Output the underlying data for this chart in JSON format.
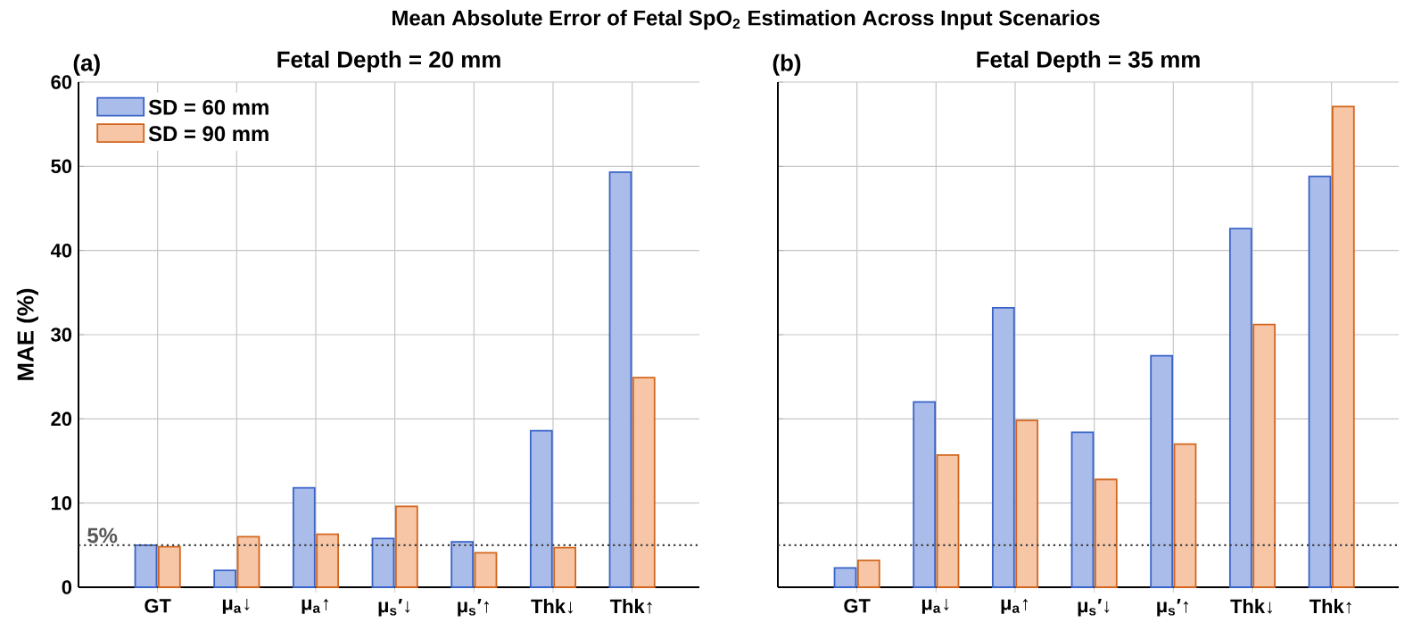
{
  "chart_data": [
    {
      "type": "bar",
      "title": "Mean Absolute Error of Fetal SpO$_{2}$ Estimation Across Input Scenarios",
      "subtitle": "Fetal Depth = 20 mm",
      "ylabel": "MAE (%)",
      "annotations": [
        "(a)"
      ],
      "categories": [
        "GT",
        "μ$_{a}$↓",
        "μ$_{a}$↑",
        "μ$_{s}$′↓",
        "μ$_{s}$′↑",
        "Thk↓",
        "Thk↑"
      ],
      "series": [
        {
          "name": "SD = 60 mm",
          "color": "#aabdea",
          "values": [
            5.0,
            2.0,
            11.8,
            5.8,
            5.4,
            18.6,
            49.3
          ]
        },
        {
          "name": "SD = 90 mm",
          "color": "#f7c6a6",
          "values": [
            4.8,
            6.0,
            6.3,
            9.6,
            4.1,
            4.7,
            24.9
          ]
        }
      ],
      "ylim": [
        0,
        60
      ],
      "yticks": [
        0,
        10,
        20,
        30,
        40,
        50,
        60
      ],
      "grid": true,
      "legend": "top left",
      "ref_lines": [
        {
          "axis": "y",
          "value": 5,
          "label": "5%",
          "line_style": "dotted"
        }
      ]
    },
    {
      "type": "bar",
      "subtitle": "Fetal Depth = 35 mm",
      "annotations": [
        "(b)"
      ],
      "categories": [
        "GT",
        "μ$_{a}$↓",
        "μ$_{a}$↑",
        "μ$_{s}$′↓",
        "μ$_{s}$′↑",
        "Thk↓",
        "Thk↑"
      ],
      "series": [
        {
          "color": "#aabdea",
          "values": [
            2.3,
            22.0,
            33.2,
            18.4,
            27.5,
            42.6,
            48.8
          ]
        },
        {
          "color": "#f7c6a6",
          "values": [
            3.2,
            15.7,
            19.8,
            12.8,
            17.0,
            31.2,
            57.1
          ]
        }
      ],
      "ylim": [
        0,
        60
      ],
      "yticks": [
        0,
        10,
        20,
        30,
        40,
        50,
        60
      ],
      "grid": true,
      "tick_labels": "x",
      "ref_lines": [
        {
          "axis": "y",
          "value": 5,
          "line_style": "dotted"
        }
      ]
    }
  ]
}
